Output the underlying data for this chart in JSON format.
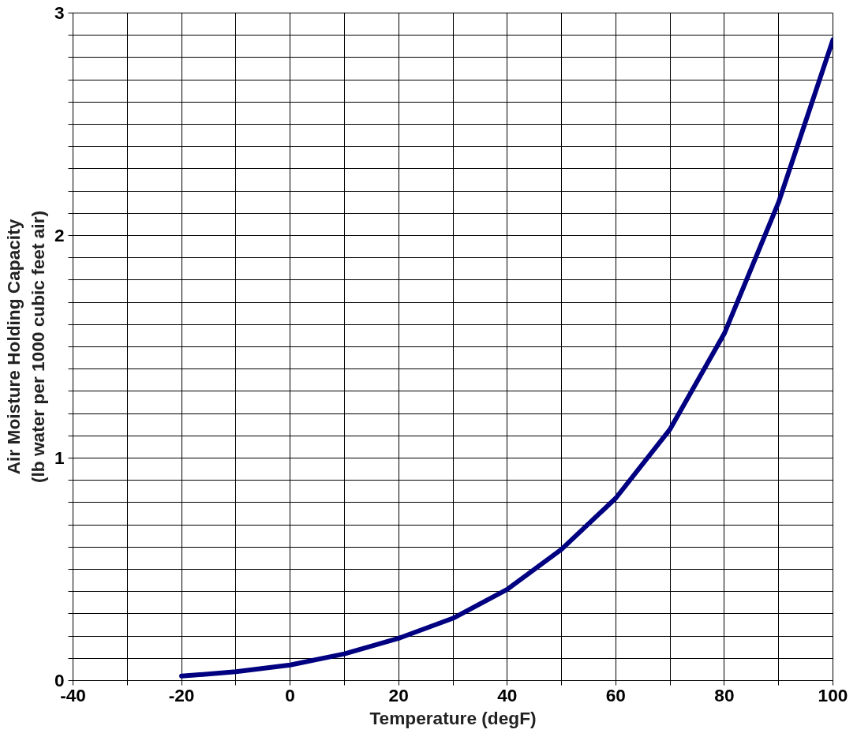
{
  "chart_data": {
    "type": "line",
    "xlabel": "Temperature (degF)",
    "ylabel": "Air Moisture Holding Capacity\n(lb water per 1000 cubic feet air)",
    "x": [
      -20,
      -10,
      0,
      10,
      20,
      30,
      40,
      50,
      60,
      70,
      80,
      90,
      100
    ],
    "series": [
      {
        "color": "#000080",
        "values": [
          0.02,
          0.04,
          0.07,
          0.12,
          0.19,
          0.28,
          0.41,
          0.59,
          0.82,
          1.13,
          1.56,
          2.15,
          2.88
        ]
      }
    ],
    "xlim": [
      -40,
      100
    ],
    "xticks": [
      -40,
      {
        "value": -30,
        "label": null
      },
      -20,
      {
        "value": -10,
        "label": null
      },
      0,
      {
        "value": 10,
        "label": null
      },
      20,
      {
        "value": 30,
        "label": null
      },
      40,
      {
        "value": 50,
        "label": null
      },
      60,
      {
        "value": 70,
        "label": null
      },
      80,
      {
        "value": 90,
        "label": null
      },
      100
    ],
    "ylim": [
      0,
      3
    ],
    "yticks": [
      0,
      {
        "value": 0.1,
        "label": null
      },
      {
        "value": 0.2,
        "label": null
      },
      {
        "value": 0.3,
        "label": null
      },
      {
        "value": 0.4,
        "label": null
      },
      {
        "value": 0.5,
        "label": null
      },
      {
        "value": 0.6,
        "label": null
      },
      {
        "value": 0.7,
        "label": null
      },
      {
        "value": 0.8,
        "label": null
      },
      {
        "value": 0.9,
        "label": null
      },
      1,
      {
        "value": 1.1,
        "label": null
      },
      {
        "value": 1.2,
        "label": null
      },
      {
        "value": 1.3,
        "label": null
      },
      {
        "value": 1.4,
        "label": null
      },
      {
        "value": 1.5,
        "label": null
      },
      {
        "value": 1.6,
        "label": null
      },
      {
        "value": 1.7,
        "label": null
      },
      {
        "value": 1.8,
        "label": null
      },
      {
        "value": 1.9,
        "label": null
      },
      2,
      {
        "value": 2.1,
        "label": null
      },
      {
        "value": 2.2,
        "label": null
      },
      {
        "value": 2.3,
        "label": null
      },
      {
        "value": 2.4,
        "label": null
      },
      {
        "value": 2.5,
        "label": null
      },
      {
        "value": 2.6,
        "label": null
      },
      {
        "value": 2.7,
        "label": null
      },
      {
        "value": 2.8,
        "label": null
      },
      {
        "value": 2.9,
        "label": null
      },
      3
    ],
    "grid": true,
    "marker": "none",
    "line_style": "solid"
  }
}
